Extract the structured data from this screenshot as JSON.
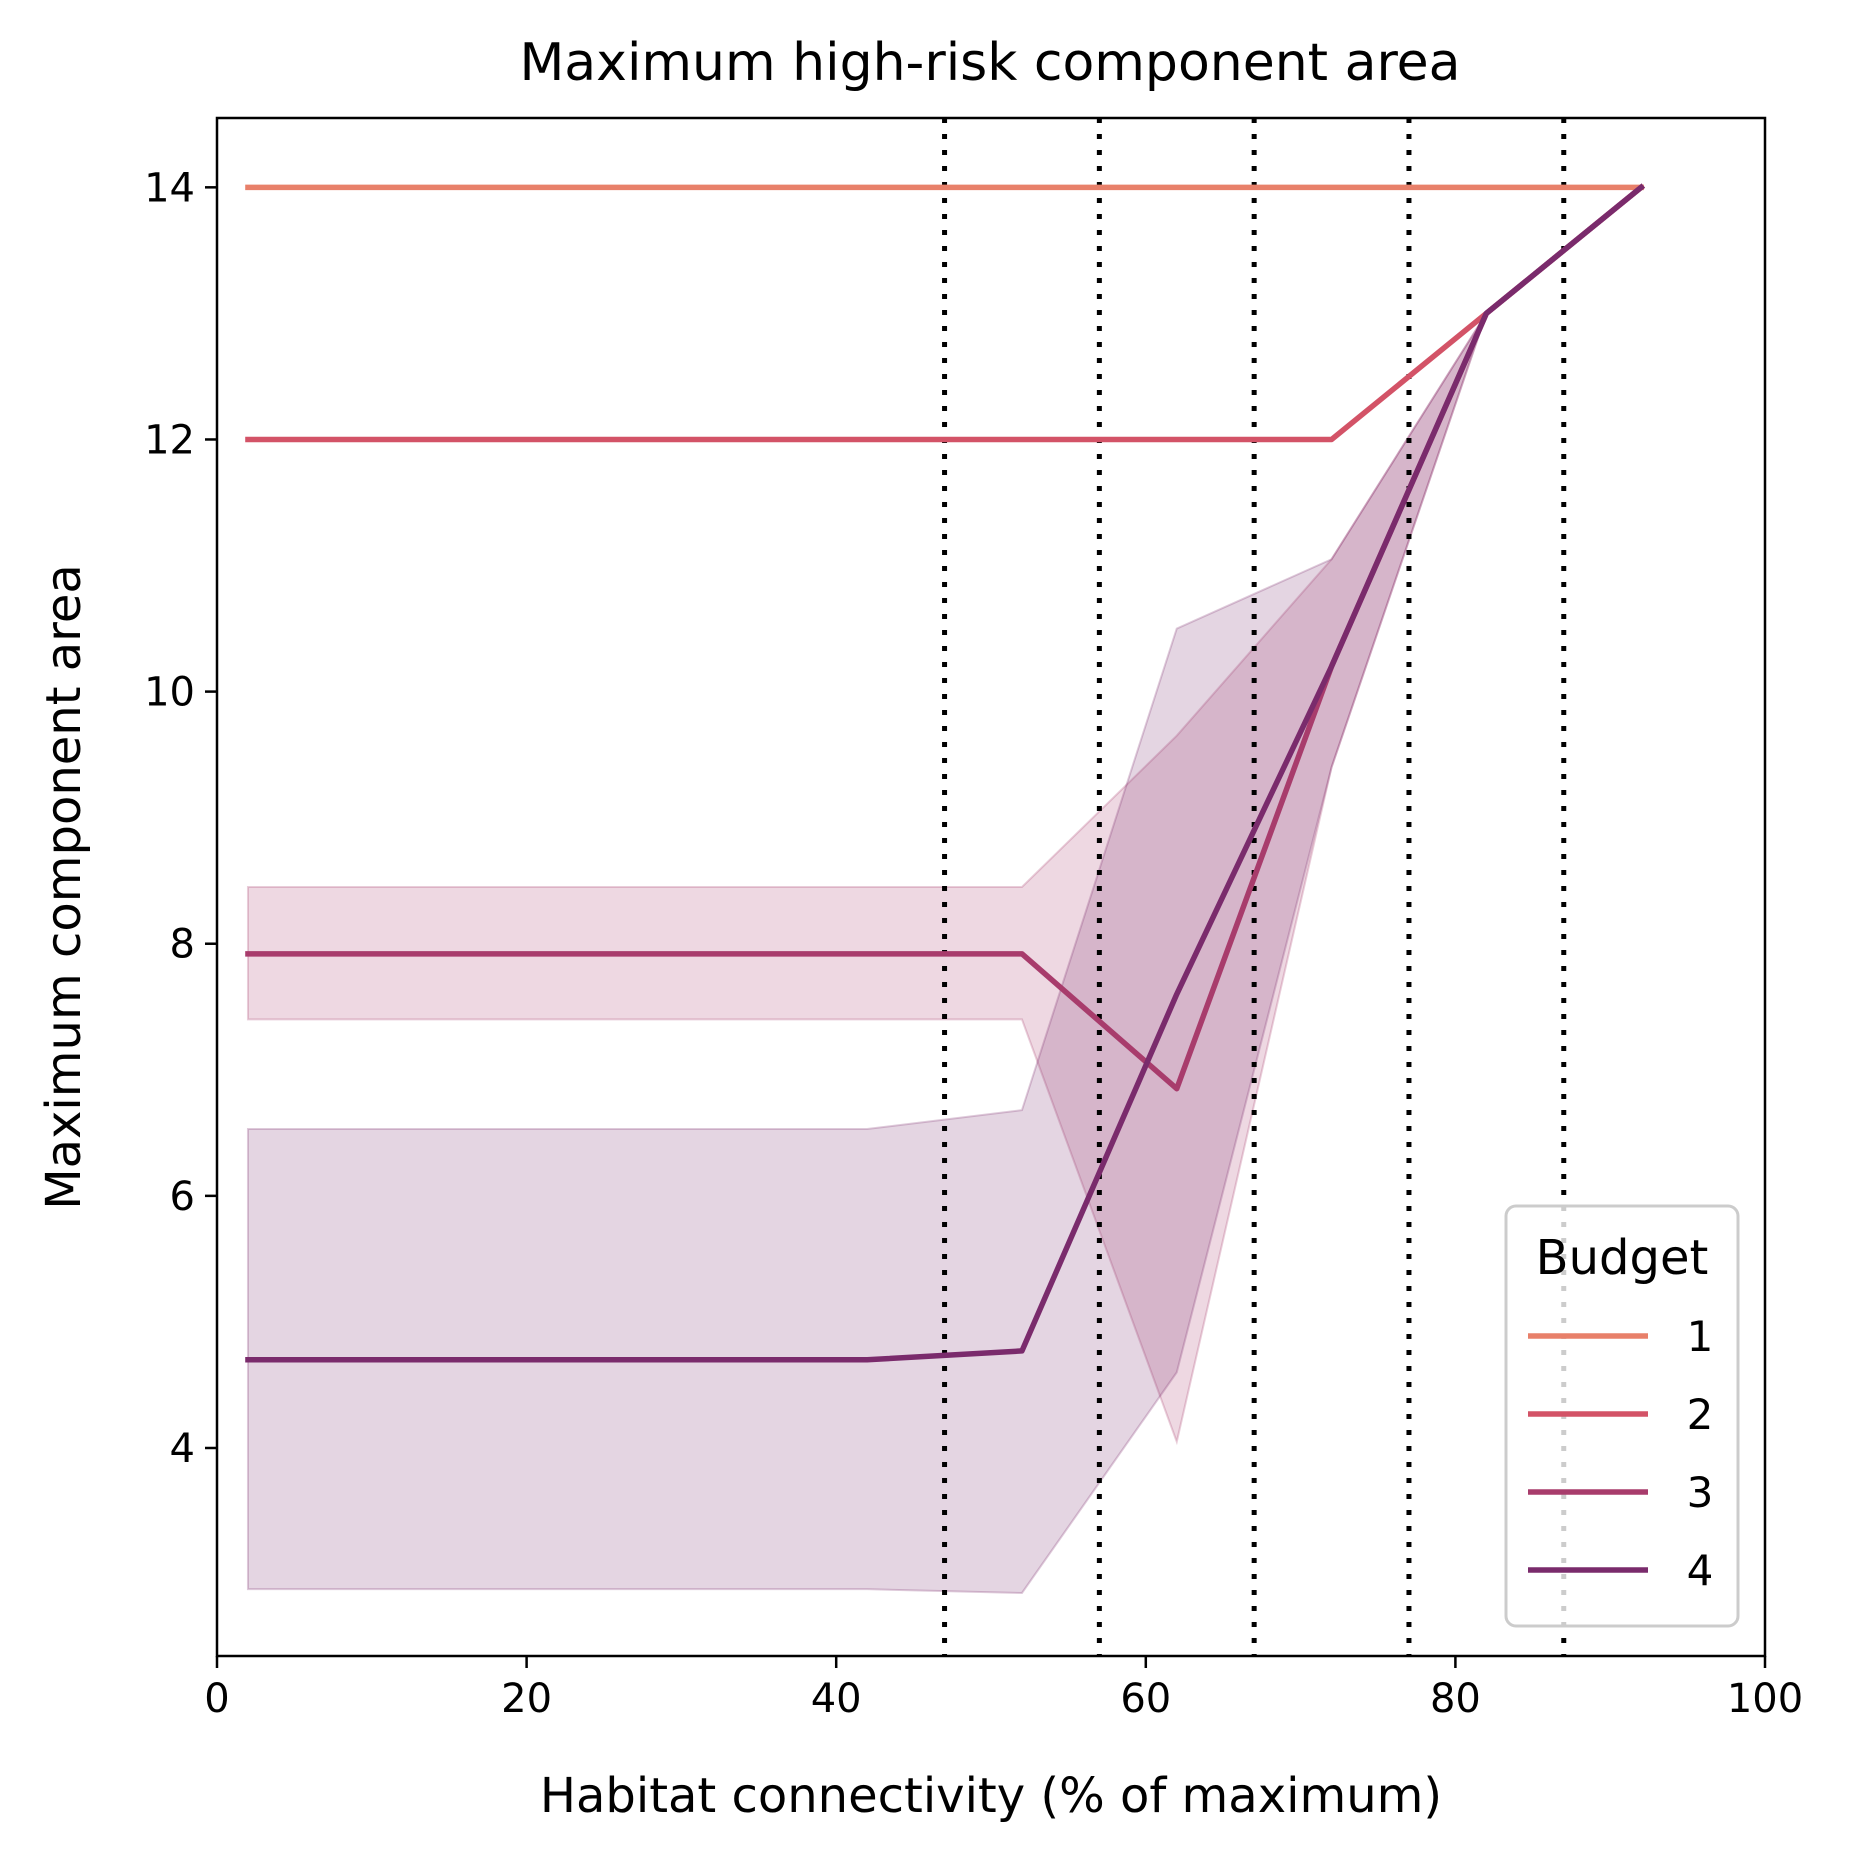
{
  "chart_data": {
    "type": "line",
    "title": "Maximum high-risk component area",
    "xlabel": "Habitat connectivity (% of maximum)",
    "ylabel": "Maximum component area",
    "xlim": [
      0,
      100
    ],
    "ylim": [
      2.35,
      14.55
    ],
    "xticks": [
      0,
      20,
      40,
      60,
      80,
      100
    ],
    "yticks": [
      4,
      6,
      8,
      10,
      12,
      14
    ],
    "grid": false,
    "reference_lines": {
      "orientation": "vertical",
      "style": "dotted",
      "color": "#000000",
      "x": [
        47,
        57,
        67,
        77,
        87
      ]
    },
    "legend": {
      "title": "Budget",
      "placement": "lower right"
    },
    "series": [
      {
        "name": "1",
        "color": "#e8806a",
        "x": [
          2,
          92
        ],
        "y": [
          14,
          14
        ]
      },
      {
        "name": "2",
        "color": "#d35367",
        "x": [
          2,
          72,
          82,
          92
        ],
        "y": [
          12,
          12,
          13,
          14
        ]
      },
      {
        "name": "3",
        "color": "#a83c6c",
        "x": [
          2,
          52,
          62,
          72,
          82,
          92
        ],
        "y": [
          7.92,
          7.92,
          6.85,
          10.2,
          13,
          14
        ],
        "ci_lower": [
          7.4,
          7.4,
          4.05,
          9.4,
          13,
          14
        ],
        "ci_upper": [
          8.45,
          8.45,
          9.65,
          11.05,
          13,
          14
        ]
      },
      {
        "name": "4",
        "color": "#7a2b6c",
        "x": [
          2,
          42,
          52,
          62,
          72,
          82,
          92
        ],
        "y": [
          4.7,
          4.7,
          4.77,
          7.6,
          10.2,
          13,
          14
        ],
        "ci_lower": [
          2.88,
          2.88,
          2.85,
          4.6,
          9.4,
          13,
          14
        ],
        "ci_upper": [
          6.53,
          6.53,
          6.68,
          10.5,
          11.05,
          13,
          14
        ]
      }
    ]
  }
}
